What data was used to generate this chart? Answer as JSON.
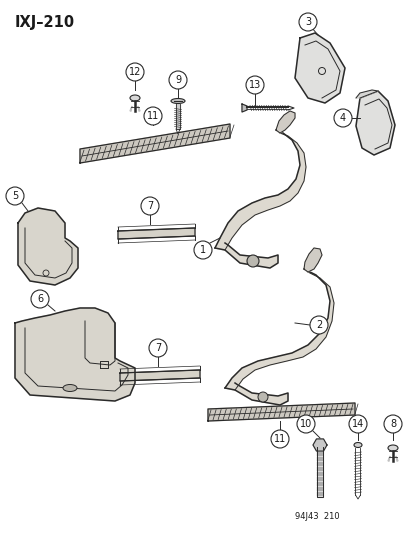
{
  "title": "IXJ–210",
  "footer": "94J43  210",
  "bg_color": "#f5f5f0",
  "line_color": "#2a2a2a",
  "text_color": "#1a1a1a",
  "fig_width": 4.14,
  "fig_height": 5.33,
  "dpi": 100,
  "label_fontsize": 7.0,
  "title_fontsize": 10.5,
  "footer_fontsize": 6.0
}
